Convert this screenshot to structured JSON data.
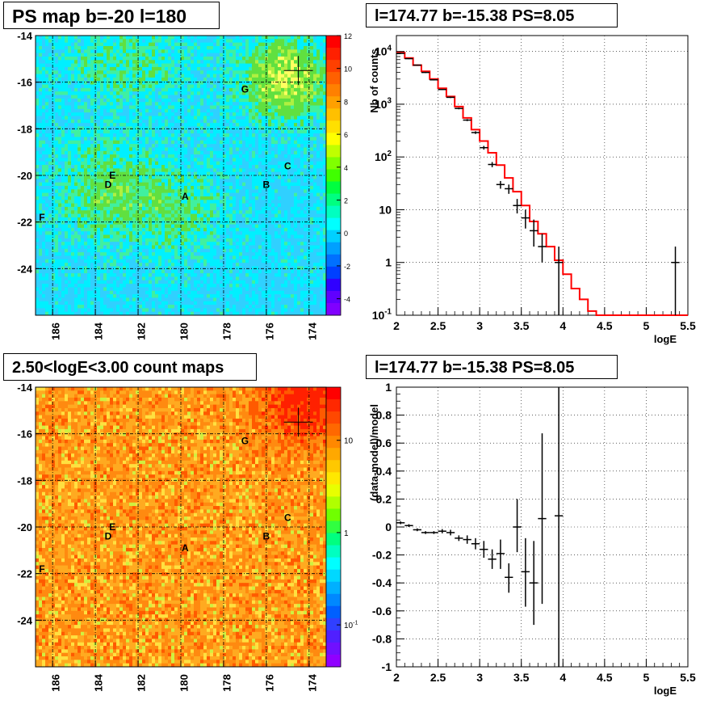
{
  "chart_data": [
    {
      "id": "ps-map",
      "type": "heatmap",
      "title": "PS map b=-20 l=180",
      "xlim": [
        186.8,
        173.2
      ],
      "ylim": [
        -26,
        -14
      ],
      "x_ticks": [
        "186",
        "184",
        "182",
        "180",
        "178",
        "176",
        "174"
      ],
      "y_ticks": [
        "-14",
        "-16",
        "-18",
        "-20",
        "-22",
        "-24"
      ],
      "colorbar": {
        "range": [
          -5,
          12
        ],
        "ticks": [
          "12",
          "10",
          "8",
          "6",
          "4",
          "2",
          "0",
          "-2",
          "-4"
        ]
      },
      "grid": true,
      "labels": [
        {
          "text": "G",
          "x": 177.0,
          "y": -16.3
        },
        {
          "text": "C",
          "x": 175.0,
          "y": -19.6
        },
        {
          "text": "B",
          "x": 176.0,
          "y": -20.4
        },
        {
          "text": "E",
          "x": 183.2,
          "y": -20.0
        },
        {
          "text": "D",
          "x": 183.4,
          "y": -20.4
        },
        {
          "text": "A",
          "x": 179.8,
          "y": -20.9
        },
        {
          "text": "F",
          "x": 186.5,
          "y": -21.8
        }
      ],
      "marker": {
        "x": 174.5,
        "y": -15.5
      }
    },
    {
      "id": "spectrum",
      "type": "line",
      "title": "l=174.77 b=-15.38 PS=8.05",
      "xlabel": "logE",
      "ylabel": "Nb of counts",
      "xlim": [
        2,
        5.5
      ],
      "ylim": [
        0.1,
        20000
      ],
      "yscale": "log",
      "x_ticks": [
        "2",
        "2.5",
        "3",
        "3.5",
        "4",
        "4.5",
        "5",
        "5.5"
      ],
      "y_ticks": [
        {
          "label": "10",
          "sup": "4",
          "v": 10000
        },
        {
          "label": "10",
          "sup": "3",
          "v": 1000
        },
        {
          "label": "10",
          "sup": "2",
          "v": 100
        },
        {
          "label": "10",
          "sup": "",
          "v": 10
        },
        {
          "label": "1",
          "sup": "",
          "v": 1
        },
        {
          "label": "10",
          "sup": "-1",
          "v": 0.1
        }
      ],
      "grid": true,
      "model_color": "#ff0000",
      "model": {
        "edges": [
          2,
          2.1,
          2.2,
          2.3,
          2.4,
          2.5,
          2.6,
          2.7,
          2.8,
          2.9,
          3.0,
          3.1,
          3.2,
          3.3,
          3.4,
          3.5,
          3.6,
          3.7,
          3.8,
          3.9,
          4.0,
          4.1,
          4.2,
          4.3,
          4.4,
          5.5
        ],
        "values": [
          9500,
          7500,
          5500,
          4200,
          3000,
          2000,
          1400,
          900,
          550,
          330,
          200,
          120,
          70,
          40,
          22,
          12,
          6,
          3.5,
          2,
          1.1,
          0.6,
          0.32,
          0.2,
          0.12,
          0.1
        ]
      },
      "data_points": [
        {
          "x": 2.05,
          "y": 9200,
          "lo": 9000,
          "hi": 9400
        },
        {
          "x": 2.15,
          "y": 7300,
          "lo": 7150,
          "hi": 7450
        },
        {
          "x": 2.25,
          "y": 5500,
          "lo": 5380,
          "hi": 5620
        },
        {
          "x": 2.35,
          "y": 4000,
          "lo": 3900,
          "hi": 4100
        },
        {
          "x": 2.45,
          "y": 2900,
          "lo": 2820,
          "hi": 2980
        },
        {
          "x": 2.55,
          "y": 1900,
          "lo": 1850,
          "hi": 1950
        },
        {
          "x": 2.65,
          "y": 1350,
          "lo": 1310,
          "hi": 1390
        },
        {
          "x": 2.75,
          "y": 830,
          "lo": 800,
          "hi": 860
        },
        {
          "x": 2.85,
          "y": 500,
          "lo": 478,
          "hi": 522
        },
        {
          "x": 2.95,
          "y": 290,
          "lo": 273,
          "hi": 307
        },
        {
          "x": 3.05,
          "y": 150,
          "lo": 138,
          "hi": 162
        },
        {
          "x": 3.15,
          "y": 72,
          "lo": 64,
          "hi": 80
        },
        {
          "x": 3.25,
          "y": 30,
          "lo": 25,
          "hi": 35
        },
        {
          "x": 3.35,
          "y": 25,
          "lo": 20,
          "hi": 30
        },
        {
          "x": 3.45,
          "y": 12,
          "lo": 8.5,
          "hi": 16
        },
        {
          "x": 3.55,
          "y": 7,
          "lo": 4.4,
          "hi": 10
        },
        {
          "x": 3.65,
          "y": 4,
          "lo": 2.0,
          "hi": 6.5
        },
        {
          "x": 3.75,
          "y": 2,
          "lo": 1.0,
          "hi": 3.5
        },
        {
          "x": 3.95,
          "y": 1,
          "lo": 0.1,
          "hi": 2
        },
        {
          "x": 5.35,
          "y": 1,
          "lo": 0.1,
          "hi": 2
        }
      ]
    },
    {
      "id": "count-map",
      "type": "heatmap",
      "title": "2.50<logE<3.00 count maps",
      "xlim": [
        186.8,
        173.2
      ],
      "ylim": [
        -26,
        -14
      ],
      "x_ticks": [
        "186",
        "184",
        "182",
        "180",
        "178",
        "176",
        "174"
      ],
      "y_ticks": [
        "-14",
        "-16",
        "-18",
        "-20",
        "-22",
        "-24"
      ],
      "colorbar": {
        "scale": "log",
        "ticks": [
          {
            "label": "10",
            "sup": ""
          },
          {
            "label": "1",
            "sup": ""
          },
          {
            "label": "10",
            "sup": "-1"
          }
        ]
      },
      "grid": true,
      "labels": [
        {
          "text": "G",
          "x": 177.0,
          "y": -16.3
        },
        {
          "text": "C",
          "x": 175.0,
          "y": -19.6
        },
        {
          "text": "B",
          "x": 176.0,
          "y": -20.4
        },
        {
          "text": "E",
          "x": 183.2,
          "y": -20.0
        },
        {
          "text": "D",
          "x": 183.4,
          "y": -20.4
        },
        {
          "text": "A",
          "x": 179.8,
          "y": -20.9
        },
        {
          "text": "F",
          "x": 186.5,
          "y": -21.8
        }
      ],
      "marker": {
        "x": 174.5,
        "y": -15.5
      }
    },
    {
      "id": "residuals",
      "type": "scatter",
      "title": "l=174.77 b=-15.38 PS=8.05",
      "xlabel": "logE",
      "ylabel": "(data-model)/model",
      "xlim": [
        2,
        5.5
      ],
      "ylim": [
        -1,
        1
      ],
      "x_ticks": [
        "2",
        "2.5",
        "3",
        "3.5",
        "4",
        "4.5",
        "5",
        "5.5"
      ],
      "y_ticks": [
        "1",
        "0.8",
        "0.6",
        "0.4",
        "0.2",
        "0",
        "-0.2",
        "-0.4",
        "-0.6",
        "-0.8",
        "-1"
      ],
      "grid": true,
      "data_points": [
        {
          "x": 2.05,
          "y": 0.03,
          "lo": 0.02,
          "hi": 0.04
        },
        {
          "x": 2.15,
          "y": 0.01,
          "lo": 0.0,
          "hi": 0.02
        },
        {
          "x": 2.25,
          "y": -0.02,
          "lo": -0.03,
          "hi": -0.01
        },
        {
          "x": 2.35,
          "y": -0.04,
          "lo": -0.05,
          "hi": -0.03
        },
        {
          "x": 2.45,
          "y": -0.04,
          "lo": -0.05,
          "hi": -0.03
        },
        {
          "x": 2.55,
          "y": -0.03,
          "lo": -0.045,
          "hi": -0.015
        },
        {
          "x": 2.65,
          "y": -0.04,
          "lo": -0.06,
          "hi": -0.02
        },
        {
          "x": 2.75,
          "y": -0.08,
          "lo": -0.1,
          "hi": -0.06
        },
        {
          "x": 2.85,
          "y": -0.09,
          "lo": -0.12,
          "hi": -0.06
        },
        {
          "x": 2.95,
          "y": -0.12,
          "lo": -0.16,
          "hi": -0.08
        },
        {
          "x": 3.05,
          "y": -0.16,
          "lo": -0.22,
          "hi": -0.1
        },
        {
          "x": 3.15,
          "y": -0.23,
          "lo": -0.3,
          "hi": -0.16
        },
        {
          "x": 3.25,
          "y": -0.19,
          "lo": -0.3,
          "hi": -0.09
        },
        {
          "x": 3.35,
          "y": -0.36,
          "lo": -0.47,
          "hi": -0.26
        },
        {
          "x": 3.45,
          "y": 0.0,
          "lo": -0.18,
          "hi": 0.2
        },
        {
          "x": 3.55,
          "y": -0.32,
          "lo": -0.57,
          "hi": -0.08
        },
        {
          "x": 3.65,
          "y": -0.4,
          "lo": -0.7,
          "hi": -0.1
        },
        {
          "x": 3.75,
          "y": 0.06,
          "lo": -0.55,
          "hi": 0.67
        },
        {
          "x": 3.95,
          "y": 0.08,
          "lo": -1.0,
          "hi": 1.0
        }
      ]
    }
  ]
}
